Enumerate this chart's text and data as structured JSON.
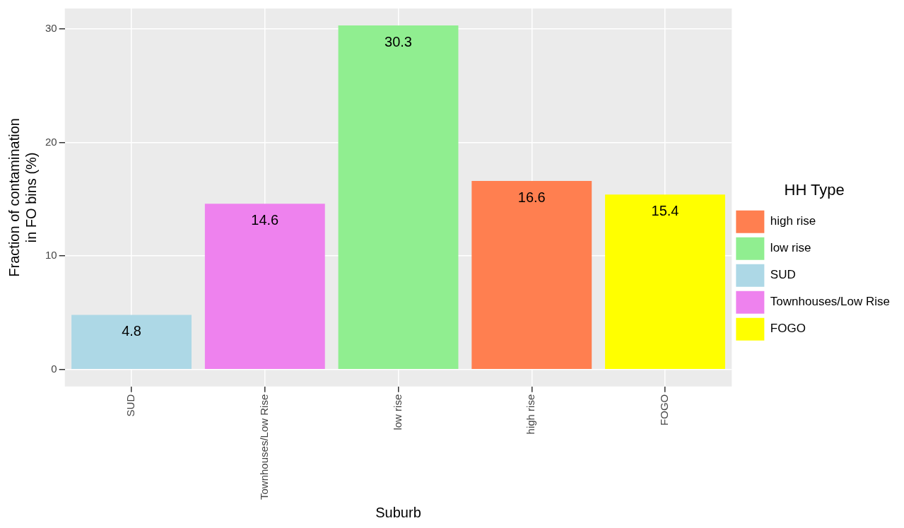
{
  "chart_data": {
    "type": "bar",
    "xlabel": "Suburb",
    "ylabel": "Fraction of contamination\nin FO bins (%)",
    "legend_title": "HH Type",
    "categories": [
      "SUD",
      "Townhouses/Low Rise",
      "low rise",
      "high rise",
      "FOGO"
    ],
    "series": [
      {
        "name": "high rise",
        "color": "#ff7f50",
        "values": [
          null,
          null,
          null,
          16.6,
          null
        ]
      },
      {
        "name": "low rise",
        "color": "#90ee90",
        "values": [
          null,
          null,
          30.3,
          null,
          null
        ]
      },
      {
        "name": "SUD",
        "color": "#add8e6",
        "values": [
          4.8,
          null,
          null,
          null,
          null
        ]
      },
      {
        "name": "Townhouses/Low Rise",
        "color": "#ee82ee",
        "values": [
          null,
          14.6,
          null,
          null,
          null
        ]
      },
      {
        "name": "FOGO",
        "color": "#ffff00",
        "values": [
          null,
          null,
          null,
          null,
          15.4
        ]
      }
    ],
    "ylim": [
      -1.5,
      31.8
    ],
    "yticks": [
      0,
      10,
      20,
      30
    ],
    "grid": true,
    "legend": "right",
    "data_labels": true
  }
}
